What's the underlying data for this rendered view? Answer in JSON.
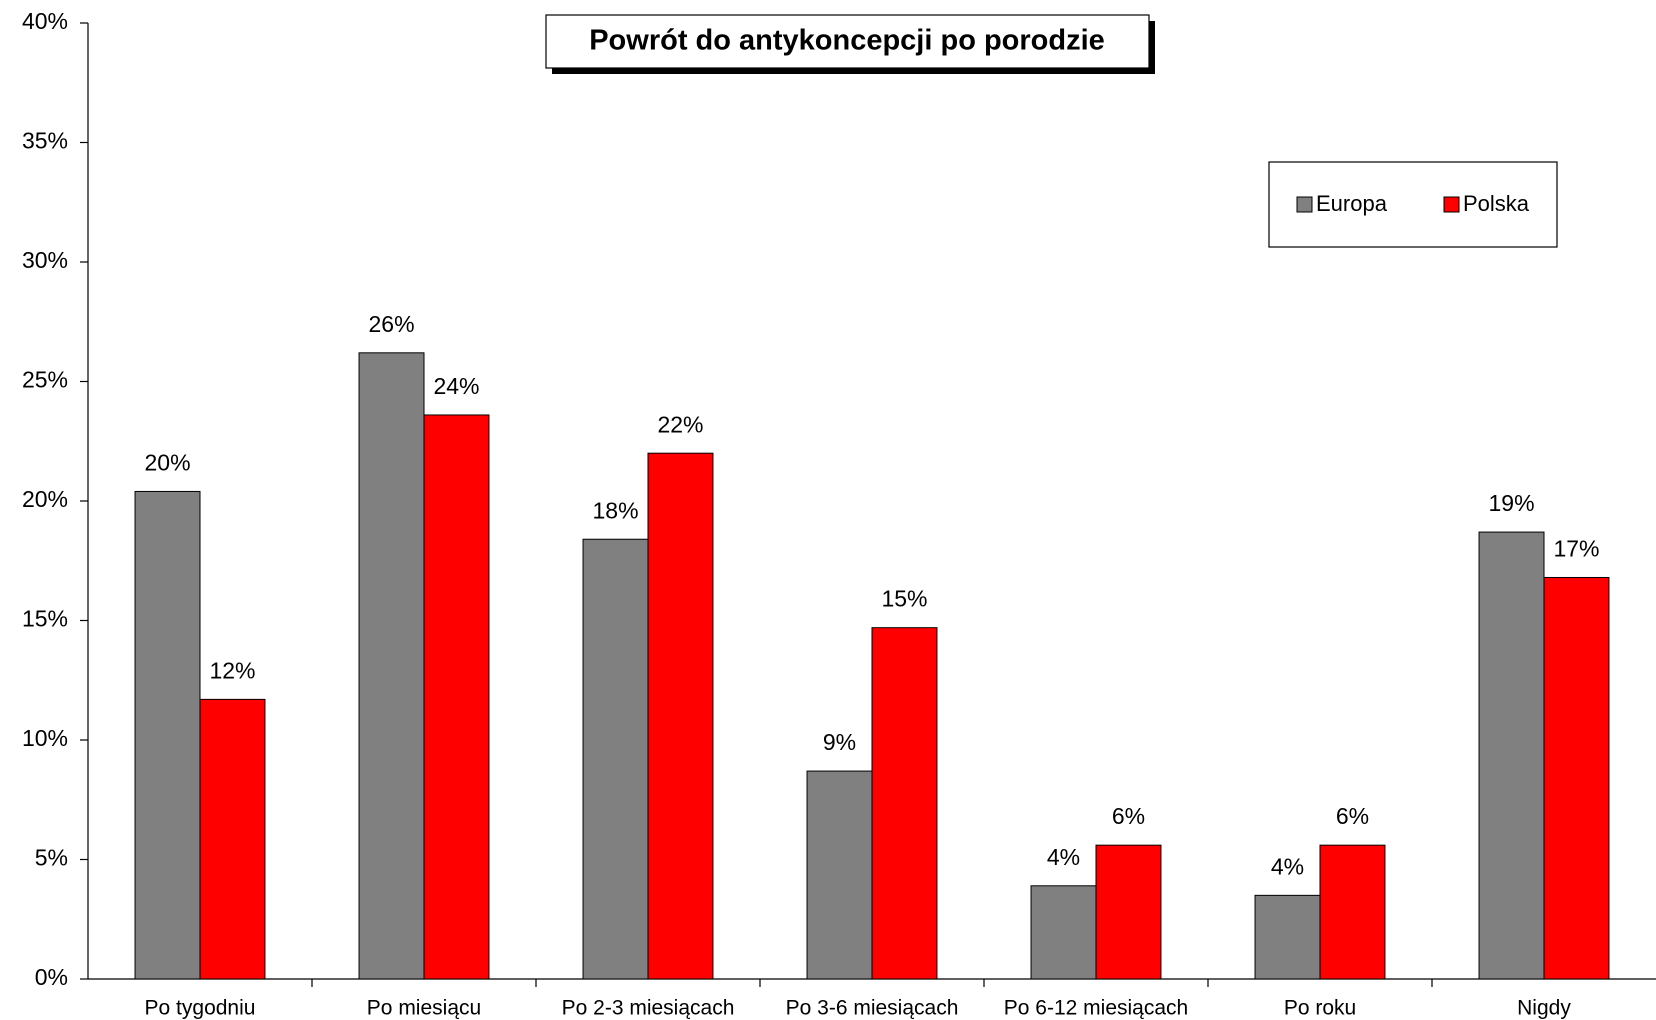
{
  "chart_data": {
    "type": "bar",
    "title": "Powrót do antykoncepcji po porodzie",
    "categories": [
      "Po tygodniu",
      "Po miesiącu",
      "Po 2-3 miesiącach",
      "Po 3-6 miesiącach",
      "Po 6-12 miesiącach",
      "Po roku",
      "Nigdy"
    ],
    "series": [
      {
        "name": "Europa",
        "color": "#808080",
        "values": [
          20.4,
          26.2,
          18.4,
          8.7,
          3.9,
          3.5,
          18.7
        ],
        "value_labels": [
          "20%",
          "26%",
          "18%",
          "9%",
          "4%",
          "4%",
          "19%"
        ]
      },
      {
        "name": "Polska",
        "color": "#ff0000",
        "values": [
          11.7,
          23.6,
          22.0,
          14.7,
          5.6,
          5.6,
          16.8
        ],
        "value_labels": [
          "12%",
          "24%",
          "22%",
          "15%",
          "6%",
          "6%",
          "17%"
        ]
      }
    ],
    "ylim": [
      0,
      40
    ],
    "yticks": [
      {
        "value": 0,
        "label": "0%"
      },
      {
        "value": 5,
        "label": "5%"
      },
      {
        "value": 10,
        "label": "10%"
      },
      {
        "value": 15,
        "label": "15%"
      },
      {
        "value": 20,
        "label": "20%"
      },
      {
        "value": 25,
        "label": "25%"
      },
      {
        "value": 30,
        "label": "30%"
      },
      {
        "value": 35,
        "label": "35%"
      },
      {
        "value": 40,
        "label": "40%"
      }
    ],
    "grid": false,
    "legend": "top-right"
  }
}
